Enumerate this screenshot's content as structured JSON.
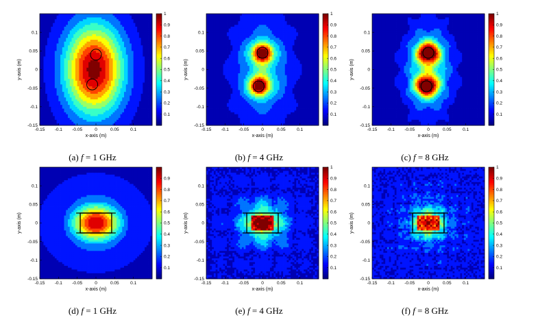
{
  "figure": {
    "panels": [
      {
        "id": "a",
        "caption_prefix": "(a)",
        "caption_var": "f",
        "caption_eq": "= 1 GHz"
      },
      {
        "id": "b",
        "caption_prefix": "(b)",
        "caption_var": "f",
        "caption_eq": "= 4 GHz"
      },
      {
        "id": "c",
        "caption_prefix": "(c)",
        "caption_var": "f",
        "caption_eq": "= 8 GHz"
      },
      {
        "id": "d",
        "caption_prefix": "(d)",
        "caption_var": "f",
        "caption_eq": "= 1 GHz"
      },
      {
        "id": "e",
        "caption_prefix": "(e)",
        "caption_var": "f",
        "caption_eq": "= 4 GHz"
      },
      {
        "id": "f",
        "caption_prefix": "(f)",
        "caption_var": "f",
        "caption_eq": "= 8 GHz"
      }
    ]
  },
  "chart_data": [
    {
      "type": "heatmap",
      "panel": "a",
      "xlabel": "x-axis (m)",
      "ylabel": "y-axis (m)",
      "xlim": [
        -0.15,
        0.15
      ],
      "ylim": [
        -0.15,
        0.15
      ],
      "clim": [
        0,
        1
      ],
      "xticks": [
        -0.15,
        -0.1,
        -0.05,
        0,
        0.05,
        0.1
      ],
      "yticks": [
        -0.15,
        -0.1,
        -0.05,
        0,
        0.05,
        0.1
      ],
      "colorbar_ticks": [
        0.1,
        0.2,
        0.3,
        0.4,
        0.5,
        0.6,
        0.7,
        0.8,
        0.9,
        1
      ],
      "colormap": [
        "#00007f",
        "#0000ff",
        "#007fff",
        "#00ffff",
        "#7fff7f",
        "#ffff00",
        "#ff7f00",
        "#ff0000",
        "#7f0000"
      ],
      "source_markers": [
        {
          "x": 0.0,
          "y": 0.04
        },
        {
          "x": -0.01,
          "y": -0.04
        }
      ],
      "enclosure": null
    },
    {
      "type": "heatmap",
      "panel": "b",
      "xlabel": "x-axis (m)",
      "ylabel": "y-axis (m)",
      "xlim": [
        -0.15,
        0.15
      ],
      "ylim": [
        -0.15,
        0.15
      ],
      "clim": [
        0,
        1
      ],
      "xticks": [
        -0.15,
        -0.1,
        -0.05,
        0,
        0.05,
        0.1
      ],
      "yticks": [
        -0.15,
        -0.1,
        -0.05,
        0,
        0.05,
        0.1
      ],
      "colorbar_ticks": [
        0.1,
        0.2,
        0.3,
        0.4,
        0.5,
        0.6,
        0.7,
        0.8,
        0.9,
        1
      ],
      "colormap": [
        "#00007f",
        "#0000ff",
        "#007fff",
        "#00ffff",
        "#7fff7f",
        "#ffff00",
        "#ff7f00",
        "#ff0000",
        "#7f0000"
      ],
      "source_markers": [
        {
          "x": 0.0,
          "y": 0.045
        },
        {
          "x": -0.01,
          "y": -0.045
        }
      ],
      "enclosure": null
    },
    {
      "type": "heatmap",
      "panel": "c",
      "xlabel": "x-axis (m)",
      "ylabel": "y-axis (m)",
      "xlim": [
        -0.15,
        0.15
      ],
      "ylim": [
        -0.15,
        0.15
      ],
      "clim": [
        0,
        1
      ],
      "xticks": [
        -0.15,
        -0.1,
        -0.05,
        0,
        0.05,
        0.1
      ],
      "yticks": [
        -0.15,
        -0.1,
        -0.05,
        0,
        0.05,
        0.1
      ],
      "colorbar_ticks": [
        0.1,
        0.2,
        0.3,
        0.4,
        0.5,
        0.6,
        0.7,
        0.8,
        0.9,
        1
      ],
      "colormap": [
        "#00007f",
        "#0000ff",
        "#007fff",
        "#00ffff",
        "#7fff7f",
        "#ffff00",
        "#ff7f00",
        "#ff0000",
        "#7f0000"
      ],
      "source_markers": [
        {
          "x": 0.0,
          "y": 0.045
        },
        {
          "x": -0.005,
          "y": -0.045
        }
      ],
      "enclosure": null
    },
    {
      "type": "heatmap",
      "panel": "d",
      "xlabel": "x-axis (m)",
      "ylabel": "y-axis (m)",
      "xlim": [
        -0.15,
        0.15
      ],
      "ylim": [
        -0.15,
        0.15
      ],
      "clim": [
        0,
        1
      ],
      "xticks": [
        -0.15,
        -0.1,
        -0.05,
        0,
        0.05,
        0.1
      ],
      "yticks": [
        -0.15,
        -0.1,
        -0.05,
        0,
        0.05,
        0.1
      ],
      "colorbar_ticks": [
        0.1,
        0.2,
        0.3,
        0.4,
        0.5,
        0.6,
        0.7,
        0.8,
        0.9
      ],
      "colormap": [
        "#00007f",
        "#0000ff",
        "#007fff",
        "#00ffff",
        "#7fff7f",
        "#ffff00",
        "#ff7f00",
        "#ff0000",
        "#7f0000"
      ],
      "source_markers": [],
      "enclosure": {
        "x0": -0.02,
        "x1": 0.02,
        "y0": -0.012,
        "y1": 0.012
      }
    },
    {
      "type": "heatmap",
      "panel": "e",
      "xlabel": "x-axis (m)",
      "ylabel": "y-axis (m)",
      "xlim": [
        -0.15,
        0.15
      ],
      "ylim": [
        -0.15,
        0.15
      ],
      "clim": [
        0,
        1
      ],
      "xticks": [
        -0.15,
        -0.1,
        -0.05,
        0,
        0.05,
        0.1
      ],
      "yticks": [
        -0.15,
        -0.1,
        -0.05,
        0,
        0.05,
        0.1
      ],
      "colorbar_ticks": [
        0.1,
        0.2,
        0.3,
        0.4,
        0.5,
        0.6,
        0.7,
        0.8,
        0.9,
        1
      ],
      "colormap": [
        "#00007f",
        "#0000ff",
        "#007fff",
        "#00ffff",
        "#7fff7f",
        "#ffff00",
        "#ff7f00",
        "#ff0000",
        "#7f0000"
      ],
      "source_markers": [],
      "enclosure": {
        "x0": -0.02,
        "x1": 0.02,
        "y0": -0.012,
        "y1": 0.012
      }
    },
    {
      "type": "heatmap",
      "panel": "f",
      "xlabel": "x-axis (m)",
      "ylabel": "y-axis (m)",
      "xlim": [
        -0.15,
        0.15
      ],
      "ylim": [
        -0.15,
        0.15
      ],
      "clim": [
        0,
        1
      ],
      "xticks": [
        -0.15,
        -0.1,
        -0.05,
        0,
        0.05,
        0.1
      ],
      "yticks": [
        -0.15,
        -0.1,
        -0.05,
        0,
        0.05,
        0.1
      ],
      "colorbar_ticks": [
        0.1,
        0.2,
        0.3,
        0.4,
        0.5,
        0.6,
        0.7,
        0.8,
        0.9,
        1
      ],
      "colormap": [
        "#00007f",
        "#0000ff",
        "#007fff",
        "#00ffff",
        "#7fff7f",
        "#ffff00",
        "#ff7f00",
        "#ff0000",
        "#7f0000"
      ],
      "source_markers": [],
      "enclosure": {
        "x0": -0.02,
        "x1": 0.02,
        "y0": -0.012,
        "y1": 0.012
      }
    }
  ]
}
